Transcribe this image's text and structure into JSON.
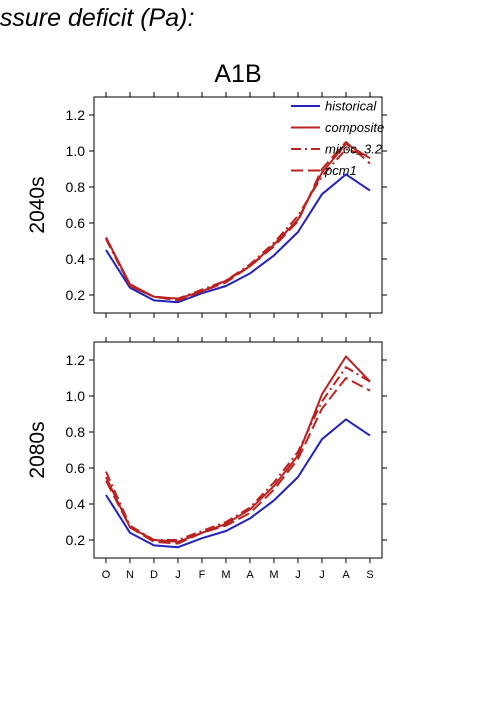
{
  "figure": {
    "title": "essure deficit (Pa):",
    "colors": {
      "historical": "#2222bb",
      "projection": "#bb2222",
      "axis": "#000000"
    }
  },
  "chart_data": {
    "type": "line",
    "scenario": "A1B",
    "months": [
      "O",
      "N",
      "D",
      "J",
      "F",
      "M",
      "A",
      "M",
      "J",
      "J",
      "A",
      "S"
    ],
    "ylim": [
      0.1,
      1.3
    ],
    "yticks": [
      0.2,
      0.4,
      0.6,
      0.8,
      1.0,
      1.2
    ],
    "legend": {
      "placement": "top-right",
      "entries": [
        {
          "label": "historical",
          "key": "historical"
        },
        {
          "label": "composite",
          "key": "composite"
        },
        {
          "label": "miroc_3.2",
          "key": "miroc_3.2"
        },
        {
          "label": "pcm1",
          "key": "pcm1"
        }
      ]
    },
    "panels": [
      {
        "label": "2040s",
        "series": [
          {
            "key": "historical",
            "color": "#2222bb",
            "dash": "solid",
            "values": [
              0.45,
              0.24,
              0.17,
              0.16,
              0.21,
              0.25,
              0.32,
              0.42,
              0.55,
              0.76,
              0.87,
              0.78
            ]
          },
          {
            "key": "composite",
            "color": "#bb2222",
            "dash": "solid",
            "values": [
              0.52,
              0.26,
              0.19,
              0.18,
              0.22,
              0.28,
              0.36,
              0.48,
              0.62,
              0.88,
              1.04,
              0.96
            ]
          },
          {
            "key": "miroc_3.2",
            "color": "#bb2222",
            "dash": "dashdot",
            "values": [
              0.51,
              0.25,
              0.19,
              0.18,
              0.23,
              0.28,
              0.37,
              0.49,
              0.64,
              0.86,
              1.01,
              0.97
            ]
          },
          {
            "key": "pcm1",
            "color": "#bb2222",
            "dash": "dashed",
            "values": [
              0.52,
              0.25,
              0.19,
              0.17,
              0.22,
              0.27,
              0.36,
              0.47,
              0.61,
              0.9,
              1.05,
              0.93
            ]
          }
        ]
      },
      {
        "label": "2080s",
        "series": [
          {
            "key": "historical",
            "color": "#2222bb",
            "dash": "solid",
            "values": [
              0.45,
              0.24,
              0.17,
              0.16,
              0.21,
              0.25,
              0.32,
              0.42,
              0.55,
              0.76,
              0.87,
              0.78
            ]
          },
          {
            "key": "composite",
            "color": "#bb2222",
            "dash": "solid",
            "values": [
              0.55,
              0.27,
              0.2,
              0.19,
              0.24,
              0.29,
              0.37,
              0.5,
              0.67,
              1.01,
              1.22,
              1.08
            ]
          },
          {
            "key": "miroc_3.2",
            "color": "#bb2222",
            "dash": "dashdot",
            "values": [
              0.58,
              0.28,
              0.2,
              0.2,
              0.25,
              0.3,
              0.38,
              0.52,
              0.69,
              0.97,
              1.16,
              1.08
            ]
          },
          {
            "key": "pcm1",
            "color": "#bb2222",
            "dash": "dashed",
            "values": [
              0.53,
              0.27,
              0.19,
              0.18,
              0.24,
              0.28,
              0.35,
              0.48,
              0.65,
              0.93,
              1.1,
              1.03
            ]
          }
        ]
      }
    ]
  }
}
